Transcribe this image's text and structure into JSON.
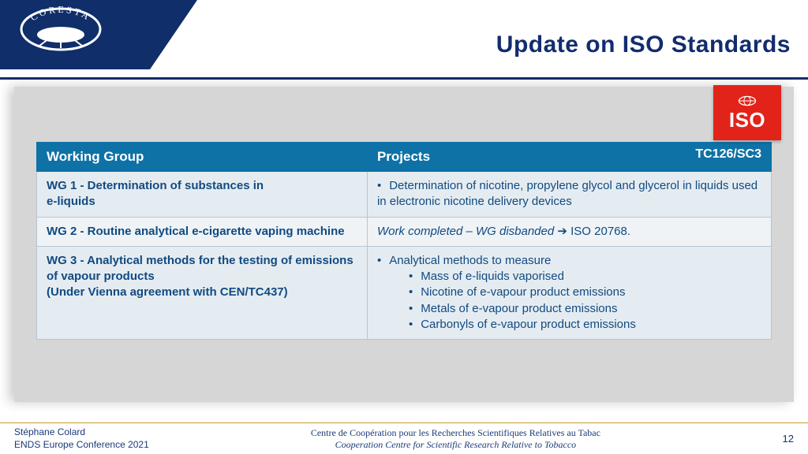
{
  "colors": {
    "dark_blue": "#0f2e6a",
    "title_blue": "#122c6f",
    "table_header_bg": "#0f72a6",
    "text_blue": "#114a82",
    "content_bg": "#d6d6d6",
    "row_odd_bg": "#e5ecf1",
    "row_even_bg": "#eff3f6",
    "iso_red": "#e2231a",
    "footer_rule": "#c89c2a"
  },
  "fontsizes": {
    "title": 30,
    "th": 17,
    "td": 15,
    "footer": 12,
    "iso": 26,
    "tc": 16
  },
  "title": "Update on ISO Standards",
  "logo_text": "CORESTA",
  "iso": {
    "label": "ISO"
  },
  "table": {
    "headers": {
      "col1": "Working Group",
      "col2": "Projects",
      "tc": "TC126/SC3"
    },
    "rows": [
      {
        "wg_html": "WG 1 - Determination of substances in<br>e-liquids",
        "proj_type": "bullets",
        "bullets": [
          "Determination of nicotine, propylene glycol and glycerol in liquids used in electronic nicotine delivery devices"
        ]
      },
      {
        "wg_html": "WG 2 - Routine analytical e-cigarette vaping machine",
        "proj_type": "text",
        "text_italic": "Work completed – WG disbanded",
        "text_tail": " ➔ ISO 20768."
      },
      {
        "wg_html": "WG 3 - Analytical methods for the testing of emissions of vapour products<br>(Under Vienna agreement with CEN/TC437)",
        "proj_type": "nested",
        "lead": "Analytical methods to measure",
        "sub": [
          "Mass of e-liquids vaporised",
          "Nicotine of e-vapour product emissions",
          "Metals of e-vapour product emissions",
          "Carbonyls of e-vapour product emissions"
        ]
      }
    ]
  },
  "footer": {
    "author": "Stéphane Colard",
    "event": "ENDS Europe Conference 2021",
    "center1": "Centre de Coopération pour les Recherches Scientifiques Relatives au Tabac",
    "center2": "Cooperation Centre for Scientific Research Relative to Tobacco",
    "page": "12"
  }
}
